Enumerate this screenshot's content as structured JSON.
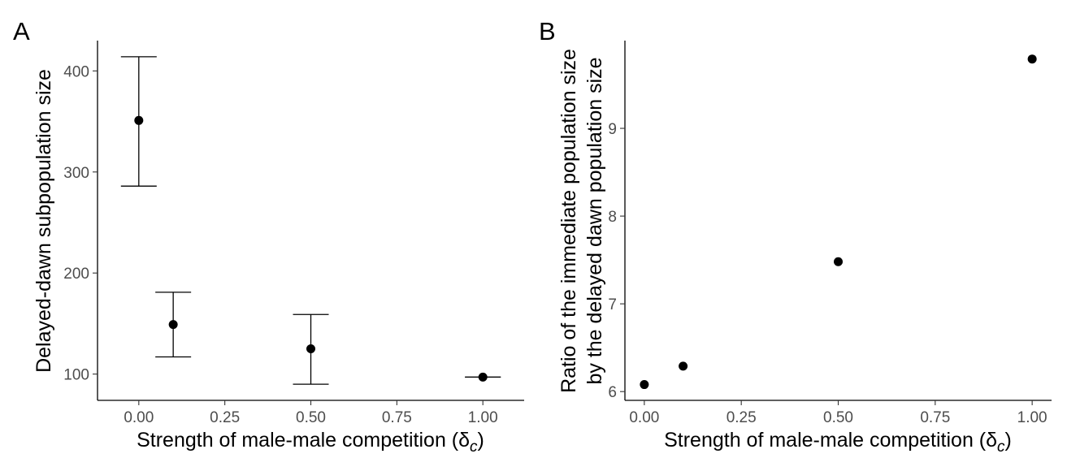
{
  "chart_data": [
    {
      "panel": "A",
      "type": "scatter",
      "xlabel": "Strength of male-male competition (",
      "xlabel_symbol": "δ",
      "xlabel_subscript": "c",
      "xlabel_close": ")",
      "ylabel": "Delayed-dawn subpopulation size",
      "xlim": [
        -0.12,
        1.12
      ],
      "ylim": [
        74,
        430
      ],
      "x_ticks": [
        0.0,
        0.25,
        0.5,
        0.75,
        1.0
      ],
      "x_tick_labels": [
        "0.00",
        "0.25",
        "0.50",
        "0.75",
        "1.00"
      ],
      "y_ticks": [
        100,
        200,
        300,
        400
      ],
      "y_tick_labels": [
        "100",
        "200",
        "300",
        "400"
      ],
      "grid": false,
      "series": [
        {
          "points": [
            {
              "x": 0.0,
              "y": 351,
              "ymin": 286,
              "ymax": 414
            },
            {
              "x": 0.1,
              "y": 149,
              "ymin": 117,
              "ymax": 181
            },
            {
              "x": 0.5,
              "y": 125,
              "ymin": 90,
              "ymax": 159
            },
            {
              "x": 1.0,
              "y": 97,
              "ymin": 97,
              "ymax": 97
            }
          ]
        }
      ]
    },
    {
      "panel": "B",
      "type": "scatter",
      "xlabel": "Strength of male-male competition (",
      "xlabel_symbol": "δ",
      "xlabel_subscript": "c",
      "xlabel_close": ")",
      "ylabel": "Ratio of the immediate population size",
      "ylabel_line2": "by the delayed dawn population size",
      "xlim": [
        -0.05,
        1.05
      ],
      "ylim": [
        5.9,
        10.0
      ],
      "x_ticks": [
        0.0,
        0.25,
        0.5,
        0.75,
        1.0
      ],
      "x_tick_labels": [
        "0.00",
        "0.25",
        "0.50",
        "0.75",
        "1.00"
      ],
      "y_ticks": [
        6,
        7,
        8,
        9
      ],
      "y_tick_labels": [
        "6",
        "7",
        "8",
        "9"
      ],
      "grid": false,
      "series": [
        {
          "points": [
            {
              "x": 0.0,
              "y": 6.08
            },
            {
              "x": 0.1,
              "y": 6.29
            },
            {
              "x": 0.5,
              "y": 7.48
            },
            {
              "x": 1.0,
              "y": 9.79
            }
          ]
        }
      ]
    }
  ]
}
